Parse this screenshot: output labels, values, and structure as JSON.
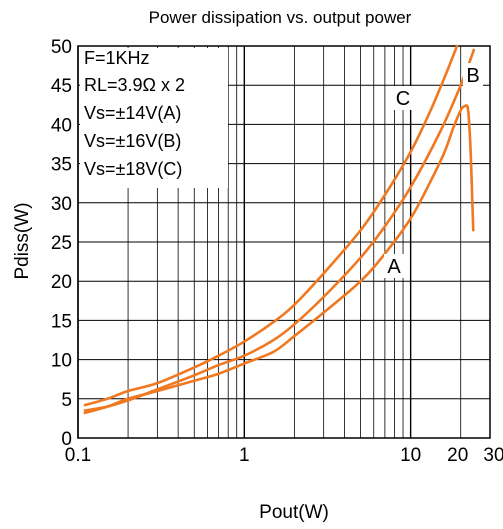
{
  "chart_data": {
    "type": "line",
    "title": "Power dissipation vs. output power",
    "xlabel": "Pout(W)",
    "ylabel": "Pdiss(W)",
    "x_scale": "log",
    "xlim": [
      0.1,
      30
    ],
    "ylim": [
      0,
      50
    ],
    "x_ticks": [
      0.1,
      1,
      10,
      20,
      30
    ],
    "x_tick_labels": [
      "0.1",
      "1",
      "10",
      "20",
      "30"
    ],
    "y_ticks": [
      0,
      5,
      10,
      15,
      20,
      25,
      30,
      35,
      40,
      45,
      50
    ],
    "y_tick_labels": [
      "0",
      "5",
      "10",
      "15",
      "20",
      "25",
      "30",
      "35",
      "40",
      "45",
      "50"
    ],
    "grid": true,
    "line_color": "#f07820",
    "annotations": [
      "F=1KHz",
      "RL=3.9Ω x 2",
      "Vs=±14V(A)",
      "Vs=±16V(B)",
      "Vs=±18V(C)"
    ],
    "series": [
      {
        "name": "A",
        "x": [
          0.11,
          0.15,
          0.2,
          0.3,
          0.5,
          0.7,
          1,
          1.5,
          2,
          3,
          5,
          7,
          10,
          13,
          16,
          18,
          20,
          21,
          22,
          22.5,
          23,
          23.5,
          23.8
        ],
        "y": [
          3.2,
          4.0,
          5.0,
          6.0,
          7.3,
          8.2,
          9.5,
          11.0,
          13.0,
          16.0,
          20.0,
          23.5,
          28.0,
          32.5,
          36.5,
          39.5,
          41.8,
          42.3,
          42.2,
          40.0,
          36.0,
          30.0,
          26.5
        ]
      },
      {
        "name": "B",
        "x": [
          0.11,
          0.15,
          0.2,
          0.3,
          0.5,
          0.7,
          1,
          1.5,
          2,
          3,
          5,
          7,
          10,
          15,
          20,
          24
        ],
        "y": [
          3.5,
          4.0,
          4.8,
          6.2,
          8.0,
          9.3,
          10.5,
          12.5,
          14.5,
          18.0,
          23.0,
          27.0,
          32.0,
          39.0,
          45.0,
          49.5
        ]
      },
      {
        "name": "C",
        "x": [
          0.11,
          0.15,
          0.2,
          0.3,
          0.5,
          0.7,
          1,
          1.5,
          2,
          3,
          5,
          7,
          10,
          13,
          16,
          19
        ],
        "y": [
          4.2,
          5.0,
          6.0,
          7.0,
          9.0,
          10.5,
          12.3,
          14.8,
          17.0,
          21.0,
          26.5,
          31.0,
          36.5,
          41.5,
          46.0,
          50.0
        ]
      }
    ]
  }
}
